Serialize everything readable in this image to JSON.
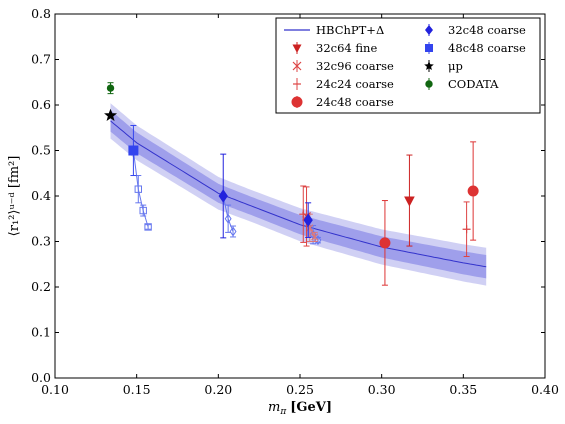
{
  "chart_data": {
    "type": "scatter",
    "xlabel_main": "m",
    "xlabel_sub": "π",
    "xlabel_unit": "[GeV]",
    "ylabel_text": "⟨r₁²⟩ᵘ⁻ᵈ [fm²]",
    "xlim": [
      0.1,
      0.4
    ],
    "ylim": [
      0.0,
      0.8
    ],
    "xticks": [
      "0.10",
      "0.15",
      "0.20",
      "0.25",
      "0.30",
      "0.35",
      "0.40"
    ],
    "yticks": [
      "0.0",
      "0.1",
      "0.2",
      "0.3",
      "0.4",
      "0.5",
      "0.6",
      "0.7",
      "0.8"
    ],
    "grid": false,
    "legend_position": "top-right",
    "fit": {
      "name": "HBChPT+Δ",
      "x": [
        0.134,
        0.15,
        0.2,
        0.25,
        0.3,
        0.35,
        0.365
      ],
      "y": [
        0.565,
        0.517,
        0.406,
        0.337,
        0.288,
        0.253,
        0.244
      ],
      "inner_band": 0.02,
      "outer_band": 0.015,
      "color": "#3333cc"
    },
    "series": [
      {
        "name": "32c64 fine",
        "marker": "triangle-down",
        "color": "#cc2222",
        "points": [
          {
            "x": 0.317,
            "y": 0.39,
            "err": 0.1
          }
        ]
      },
      {
        "name": "32c96 coarse",
        "marker": "x",
        "color": "#dd4444",
        "points": [
          {
            "x": 0.254,
            "y": 0.355,
            "err": 0.065
          }
        ]
      },
      {
        "name": "24c24 coarse",
        "marker": "plus",
        "color": "#dd4444",
        "points": [
          {
            "x": 0.252,
            "y": 0.36,
            "err": 0.062
          },
          {
            "x": 0.352,
            "y": 0.327,
            "err": 0.06
          }
        ]
      },
      {
        "name": "24c48 coarse",
        "marker": "circle",
        "color": "#dd3333",
        "points": [
          {
            "x": 0.302,
            "y": 0.297,
            "err": 0.093
          },
          {
            "x": 0.356,
            "y": 0.411,
            "err": 0.108
          }
        ]
      },
      {
        "name": "32c48 coarse",
        "marker": "diamond",
        "color": "#2222dd",
        "points": [
          {
            "x": 0.203,
            "y": 0.4,
            "err": 0.092
          },
          {
            "x": 0.255,
            "y": 0.347,
            "err": 0.038
          }
        ]
      },
      {
        "name": "48c48 coarse",
        "marker": "square",
        "color": "#3344ee",
        "points": [
          {
            "x": 0.148,
            "y": 0.5,
            "err": 0.055
          }
        ]
      },
      {
        "name": "μp",
        "marker": "star",
        "color": "#000000",
        "points": [
          {
            "x": 0.134,
            "y": 0.577,
            "err": 0.0
          }
        ]
      },
      {
        "name": "CODATA",
        "marker": "circle-small",
        "color": "#116611",
        "points": [
          {
            "x": 0.134,
            "y": 0.637,
            "err": 0.012
          }
        ]
      }
    ],
    "open_points": [
      {
        "marker": "square-open",
        "color": "#6677ee",
        "points": [
          {
            "x": 0.151,
            "y": 0.415,
            "err": 0.03
          },
          {
            "x": 0.154,
            "y": 0.368,
            "err": 0.012
          },
          {
            "x": 0.157,
            "y": 0.332,
            "err": 0.005
          }
        ],
        "from": {
          "x": 0.148,
          "y": 0.5
        }
      },
      {
        "marker": "diamond-open",
        "color": "#6677ee",
        "points": [
          {
            "x": 0.206,
            "y": 0.35,
            "err": 0.03
          },
          {
            "x": 0.209,
            "y": 0.322,
            "err": 0.012
          }
        ],
        "from": {
          "x": 0.203,
          "y": 0.4
        }
      },
      {
        "marker": "diamond-open",
        "color": "#6677ee",
        "points": [
          {
            "x": 0.258,
            "y": 0.315,
            "err": 0.02
          },
          {
            "x": 0.261,
            "y": 0.303,
            "err": 0.006
          }
        ],
        "from": {
          "x": 0.255,
          "y": 0.347
        }
      },
      {
        "marker": "x-open",
        "color": "#dd7777",
        "points": [
          {
            "x": 0.256,
            "y": 0.33,
            "err": 0.03
          },
          {
            "x": 0.259,
            "y": 0.31,
            "err": 0.01
          }
        ],
        "from": {
          "x": 0.254,
          "y": 0.355
        }
      }
    ]
  }
}
